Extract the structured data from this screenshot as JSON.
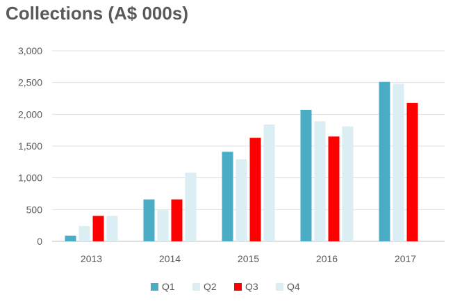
{
  "chart_data": {
    "type": "bar",
    "title": "Collections (A$ 000s)",
    "xlabel": "",
    "ylabel": "",
    "categories": [
      "2013",
      "2014",
      "2015",
      "2016",
      "2017"
    ],
    "ylim": [
      0,
      3000
    ],
    "yticks": [
      0,
      500,
      1000,
      1500,
      2000,
      2500,
      3000
    ],
    "ytick_labels": [
      "0",
      "500",
      "1,000",
      "1,500",
      "2,000",
      "2,500",
      "3,000"
    ],
    "grid": true,
    "legend_position": "bottom",
    "series": [
      {
        "name": "Q1",
        "color": "#4bacc6",
        "values": [
          90,
          660,
          1410,
          2070,
          2510
        ]
      },
      {
        "name": "Q2",
        "color": "#daeef3",
        "values": [
          240,
          490,
          1290,
          1890,
          2480
        ]
      },
      {
        "name": "Q3",
        "color": "#ff0000",
        "values": [
          400,
          660,
          1630,
          1650,
          2180
        ]
      },
      {
        "name": "Q4",
        "color": "#daeef3",
        "values": [
          400,
          1080,
          1840,
          1810,
          null
        ]
      }
    ]
  }
}
